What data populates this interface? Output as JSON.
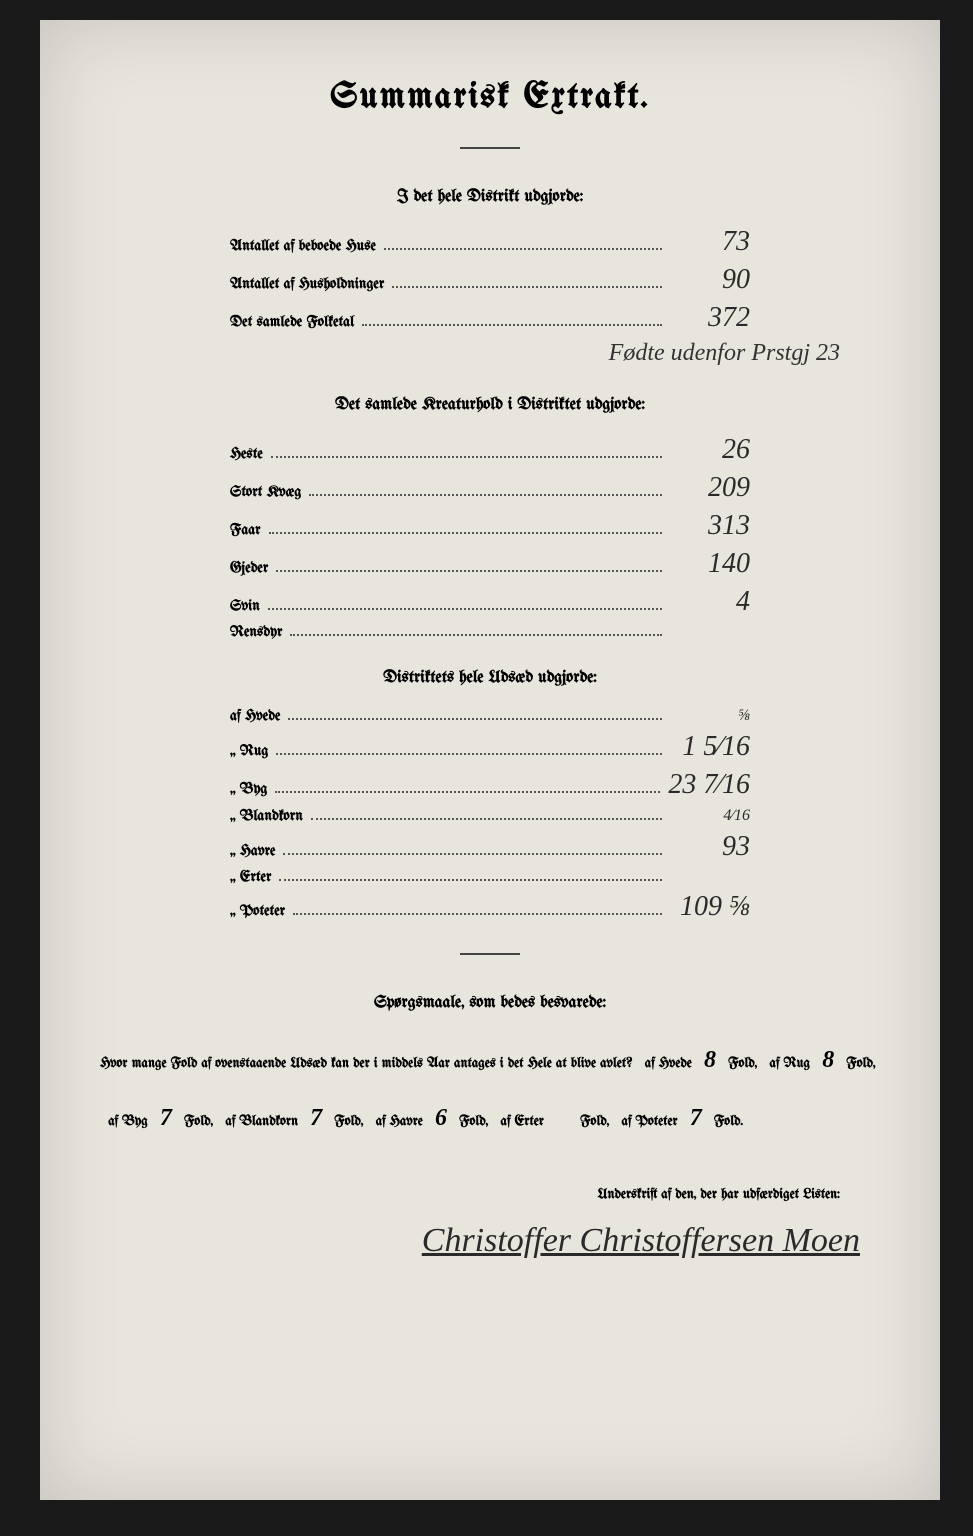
{
  "title": "Summarisk Extrakt.",
  "section1": {
    "heading": "I det hele Distrikt udgjorde:",
    "rows": [
      {
        "label": "Antallet af beboede Huse",
        "value": "73"
      },
      {
        "label": "Antallet af Husholdninger",
        "value": "90"
      },
      {
        "label": "Det samlede Folketal",
        "value": "372"
      }
    ],
    "annotation": "Fødte udenfor Prstgj 23"
  },
  "section2": {
    "heading": "Det samlede Kreaturhold i Distriktet udgjorde:",
    "rows": [
      {
        "label": "Heste",
        "value": "26"
      },
      {
        "label": "Stort Kvæg",
        "value": "209"
      },
      {
        "label": "Faar",
        "value": "313"
      },
      {
        "label": "Gjeder",
        "value": "140"
      },
      {
        "label": "Svin",
        "value": "4"
      },
      {
        "label": "Rensdyr",
        "value": ""
      }
    ]
  },
  "section3": {
    "heading": "Distriktets hele Udsæd udgjorde:",
    "rows": [
      {
        "label": "af Hvede",
        "value": "⅝"
      },
      {
        "label": "„ Rug",
        "value": "1 5⁄16"
      },
      {
        "label": "„ Byg",
        "value": "23 7⁄16"
      },
      {
        "label": "„ Blandkorn",
        "value": "4⁄16"
      },
      {
        "label": "„ Havre",
        "value": "93"
      },
      {
        "label": "„ Erter",
        "value": ""
      },
      {
        "label": "„ Poteter",
        "value": "109 ⅝"
      }
    ]
  },
  "questions": {
    "heading": "Spørgsmaale, som bedes besvarede:",
    "intro": "Hvor mange Fold af ovenstaaende Udsæd kan der i middels Aar antages i det Hele at blive avlet?",
    "items": [
      {
        "label": "af Hvede",
        "value": "8",
        "suffix": "Fold,"
      },
      {
        "label": "af Rug",
        "value": "8",
        "suffix": "Fold,"
      },
      {
        "label": "af Byg",
        "value": "7",
        "suffix": "Fold,"
      },
      {
        "label": "af Blandkorn",
        "value": "7",
        "suffix": "Fold,"
      },
      {
        "label": "af Havre",
        "value": "6",
        "suffix": "Fold,"
      },
      {
        "label": "af Erter",
        "value": "",
        "suffix": "Fold,"
      },
      {
        "label": "af Poteter",
        "value": "7",
        "suffix": "Fold."
      }
    ]
  },
  "signature": {
    "label": "Underskrift af den, der har udfærdiget Listen:",
    "name": "Christoffer Christoffersen Moen"
  }
}
